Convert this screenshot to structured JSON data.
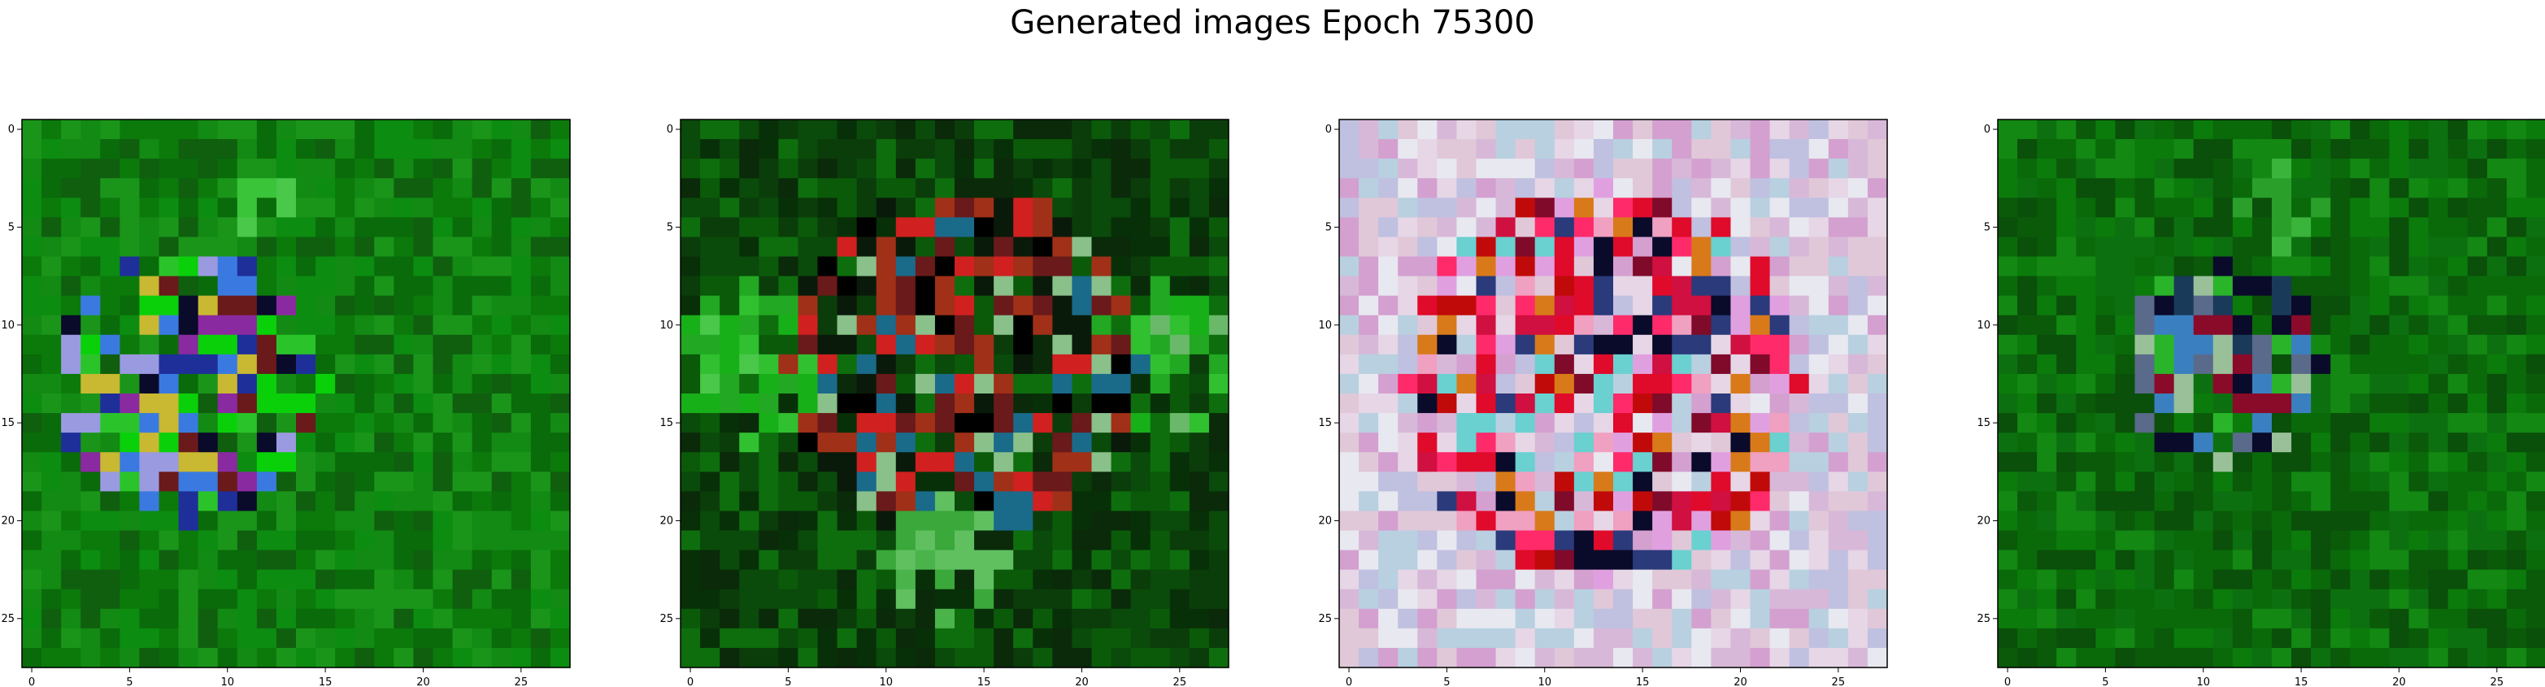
{
  "title": "Generated images Epoch 75300",
  "grid_size": 28,
  "axis": {
    "xlim": [
      -0.5,
      27.5
    ],
    "ylim_inverted": [
      27.5,
      -0.5
    ],
    "x_ticks": [
      0,
      5,
      10,
      15,
      20,
      25
    ],
    "y_ticks": [
      0,
      5,
      10,
      15,
      20,
      25
    ]
  },
  "panels": [
    {
      "name": "image-1",
      "palette": {
        "base": [
          "#0a6b0a",
          "#0b7a0b",
          "#138a13",
          "#0f5f0f",
          "#1a951a",
          "#0c8c10"
        ],
        "features": [
          {
            "cx": 8,
            "cy": 13,
            "r": 7,
            "colors": [
              "#0a0a2a",
              "#1e2f9a",
              "#3a7ae0",
              "#8a2aa0",
              "#9a9ae0",
              "#6a1a1a",
              "#c8b832",
              "#2ac42a",
              "#0ad00a"
            ]
          },
          {
            "cx": 12,
            "cy": 4,
            "r": 1.5,
            "colors": [
              "#3ac43a",
              "#4ac84a"
            ]
          }
        ]
      }
    },
    {
      "name": "image-2",
      "palette": {
        "base": [
          "#0a4a0a",
          "#0b3d0b",
          "#0a5a0a",
          "#083008",
          "#0e6e0e",
          "#0a2a0a"
        ],
        "features": [
          {
            "cx": 3,
            "cy": 12,
            "r": 4,
            "colors": [
              "#22a822",
              "#30c030",
              "#18b018",
              "#4ac84a"
            ]
          },
          {
            "cx": 24,
            "cy": 12,
            "r": 4,
            "colors": [
              "#22a822",
              "#30c030",
              "#18b018",
              "#6ab86a"
            ]
          },
          {
            "cx": 14,
            "cy": 12,
            "r": 9,
            "colors": [
              "#000000",
              "#0a1a0a",
              "#6a1a1a",
              "#a03018",
              "#d02020",
              "#1a6a8a",
              "#8ac08a"
            ]
          },
          {
            "cx": 13,
            "cy": 22,
            "r": 3,
            "colors": [
              "#60c060",
              "#4ab44a",
              "#3aa83a"
            ]
          }
        ]
      }
    },
    {
      "name": "image-3",
      "palette": {
        "base": [
          "#e6d6e6",
          "#d8b8d8",
          "#c0c0e0",
          "#e8e8f0",
          "#d4a0d0",
          "#b8d0e0",
          "#e0c8d8"
        ],
        "features": [
          {
            "cx": 13,
            "cy": 13,
            "r": 10,
            "colors": [
              "#e00a2a",
              "#d01040",
              "#ff2a6a",
              "#f0a0c0",
              "#c00a0a",
              "#800a2a",
              "#d87a1a",
              "#2a3a7a",
              "#0a0a2a",
              "#e0a0e0",
              "#6ad0d0"
            ]
          }
        ]
      }
    },
    {
      "name": "image-4",
      "palette": {
        "base": [
          "#0a6a0a",
          "#0b7b0b",
          "#0a5a0a",
          "#138813",
          "#0d7010",
          "#0a4f0a"
        ],
        "features": [
          {
            "cx": 11,
            "cy": 12,
            "r": 5,
            "colors": [
              "#0a0a2a",
              "#3a80c0",
              "#8a0a2a",
              "#5a6a8a",
              "#1a3a5a",
              "#9ac09a",
              "#2ab42a"
            ]
          },
          {
            "cx": 14,
            "cy": 4,
            "r": 2,
            "colors": [
              "#3ab43a",
              "#2aa02a"
            ]
          }
        ]
      }
    }
  ]
}
